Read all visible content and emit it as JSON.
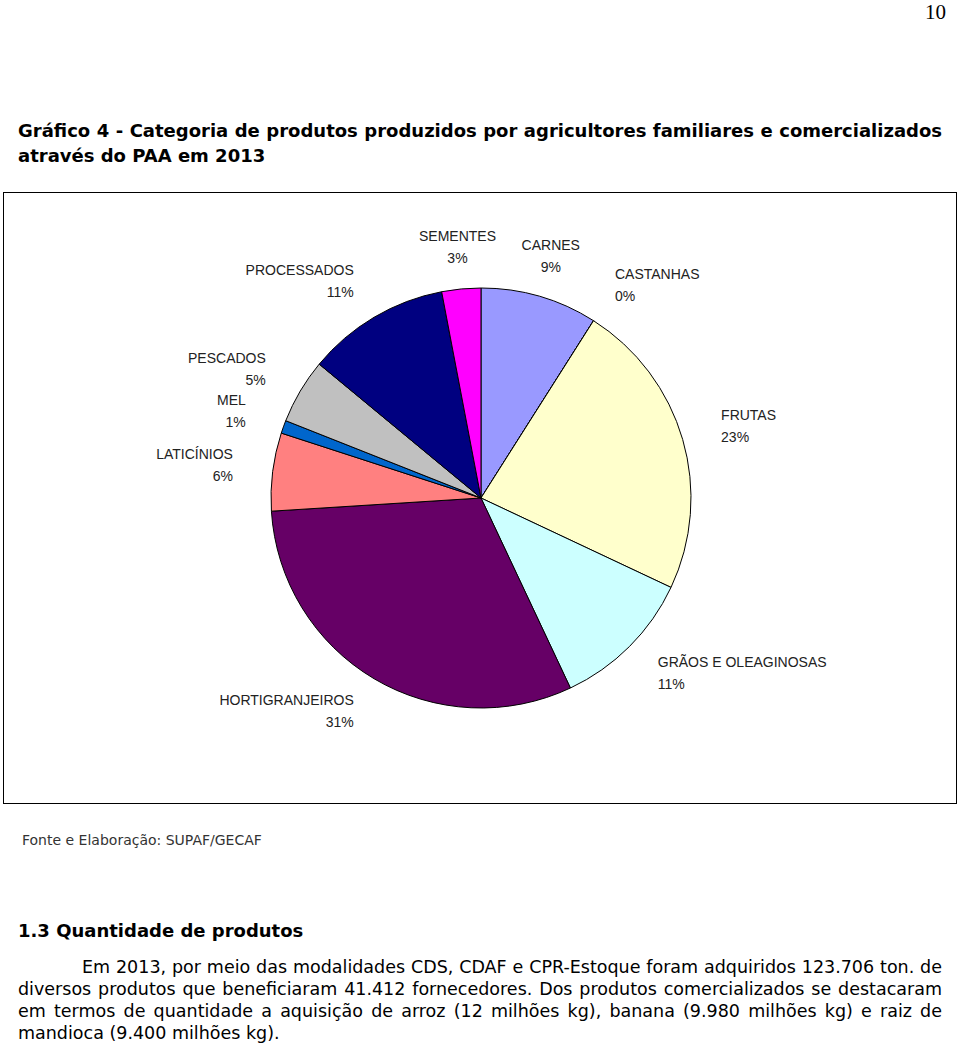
{
  "page_number": "10",
  "chart_data": {
    "type": "pie",
    "title": "Gráfico 4 - Categoria de produtos produzidos por agricultores familiares e comercializados através do PAA em 2013",
    "categories": [
      "CARNES",
      "CASTANHAS",
      "FRUTAS",
      "GRÃOS E OLEAGINOSAS",
      "HORTIGRANJEIROS",
      "LATICÍNIOS",
      "MEL",
      "PESCADOS",
      "PROCESSADOS",
      "SEMENTES"
    ],
    "values": [
      9,
      0,
      23,
      11,
      31,
      6,
      1,
      5,
      11,
      3
    ],
    "value_labels": [
      "9%",
      "0%",
      "23%",
      "11%",
      "31%",
      "6%",
      "1%",
      "5%",
      "11%",
      "3%"
    ],
    "colors": [
      "#9999ff",
      "#993366",
      "#ffffcc",
      "#ccffff",
      "#660066",
      "#ff8080",
      "#0066cc",
      "#c0c0c0",
      "#000080",
      "#ff00ff"
    ],
    "data_labels": true
  },
  "source": "Fonte e Elaboração: SUPAF/GECAF",
  "section": {
    "heading": "1.3 Quantidade de produtos",
    "paragraph": "Em 2013, por meio das modalidades CDS, CDAF e CPR-Estoque foram adquiridos 123.706 ton. de diversos produtos que beneficiaram 41.412 fornecedores. Dos produtos comercializados se destacaram em termos de quantidade a aquisição de arroz (12 milhões kg), banana (9.980 milhões kg) e raiz de mandioca (9.400 milhões kg)."
  }
}
